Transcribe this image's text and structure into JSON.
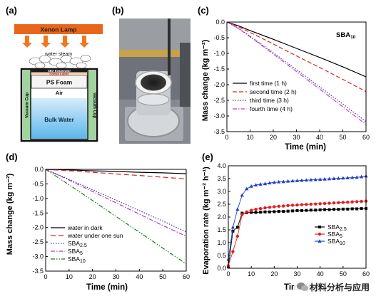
{
  "colors": {
    "lamp": "#e8661c",
    "arrow": "#f07820",
    "water_top": "#d6ecfa",
    "water_bottom": "#5cb6ea",
    "cup_wall": "#111111",
    "green_band": "#9fd49c",
    "foam": "#f4f4f4",
    "photo_bg": "#6f7278"
  },
  "diagram": {
    "label": "(a)",
    "lamp": "Xenon Lamp",
    "steam": "water steam",
    "evaporator": "SBA Evaporator",
    "fabric": "Cotton Fabric",
    "foam": "PS Foam",
    "air": "Air",
    "water": "Bulk Water",
    "cup_left": "Vacuum Cup",
    "cup_right": "Vacuum Cup"
  },
  "photo": {
    "label": "(b)"
  },
  "watermark": {
    "text": "材料分析与应用",
    "icon": "wechat-icon"
  },
  "chart_data": [
    {
      "id": "c",
      "label": "(c)",
      "type": "line",
      "annotation": "SBA10",
      "xlabel": "Time (min)",
      "ylabel": "Mass change (kg m⁻²)",
      "xlim": [
        0,
        60
      ],
      "ylim": [
        -3.5,
        0
      ],
      "xticks": [
        0,
        10,
        20,
        30,
        40,
        50,
        60
      ],
      "yticks": [
        0.0,
        -0.5,
        -1.0,
        -1.5,
        -2.0,
        -2.5,
        -3.0,
        -3.5
      ],
      "legend_position": "bottom-left",
      "series": [
        {
          "name": "first time (1 h)",
          "color": "#000000",
          "dash": "",
          "x": [
            0,
            5,
            10,
            20,
            30,
            40,
            50,
            60
          ],
          "y": [
            0,
            -0.12,
            -0.27,
            -0.55,
            -0.84,
            -1.13,
            -1.43,
            -1.75
          ]
        },
        {
          "name": "second time (2 h)",
          "color": "#d62222",
          "dash": "6,3",
          "x": [
            0,
            5,
            10,
            20,
            30,
            40,
            50,
            60
          ],
          "y": [
            0,
            -0.15,
            -0.33,
            -0.7,
            -1.08,
            -1.45,
            -1.83,
            -2.22
          ]
        },
        {
          "name": "third time (3 h)",
          "color": "#3b3ba8",
          "dash": "1.5,2",
          "x": [
            0,
            5,
            10,
            20,
            30,
            40,
            50,
            60
          ],
          "y": [
            0,
            -0.2,
            -0.45,
            -0.98,
            -1.52,
            -2.07,
            -2.62,
            -3.18
          ]
        },
        {
          "name": "fourth time (4 h)",
          "color": "#c045c0",
          "dash": "6,2,1.5,2",
          "x": [
            0,
            5,
            10,
            20,
            30,
            40,
            50,
            60
          ],
          "y": [
            0,
            -0.21,
            -0.47,
            -1.02,
            -1.58,
            -2.14,
            -2.71,
            -3.27
          ]
        }
      ]
    },
    {
      "id": "d",
      "label": "(d)",
      "type": "line",
      "xlabel": "Time (min)",
      "ylabel": "Mass change (kg m⁻²)",
      "xlim": [
        0,
        60
      ],
      "ylim": [
        -3.5,
        0
      ],
      "xticks": [
        0,
        10,
        20,
        30,
        40,
        50,
        60
      ],
      "yticks": [
        0.0,
        -0.5,
        -1.0,
        -1.5,
        -2.0,
        -2.5,
        -3.0,
        -3.5
      ],
      "legend_position": "bottom-left",
      "series": [
        {
          "name": "water in dark",
          "color": "#000000",
          "dash": "",
          "x": [
            0,
            10,
            20,
            30,
            40,
            50,
            60
          ],
          "y": [
            0,
            -0.02,
            -0.05,
            -0.07,
            -0.1,
            -0.12,
            -0.15
          ]
        },
        {
          "name": "water under one sun",
          "color": "#d62222",
          "dash": "7,4",
          "x": [
            0,
            10,
            20,
            30,
            40,
            50,
            60
          ],
          "y": [
            0,
            -0.05,
            -0.1,
            -0.16,
            -0.21,
            -0.27,
            -0.33
          ]
        },
        {
          "name": "SBA2.5",
          "color": "#3b3ba8",
          "dash": "1.5,2",
          "x": [
            0,
            10,
            20,
            30,
            40,
            50,
            60
          ],
          "y": [
            0,
            -0.34,
            -0.7,
            -1.06,
            -1.42,
            -1.78,
            -2.15
          ]
        },
        {
          "name": "SBA5",
          "color": "#b03fb0",
          "dash": "6,2,1.5,2",
          "x": [
            0,
            10,
            20,
            30,
            40,
            50,
            60
          ],
          "y": [
            0,
            -0.37,
            -0.76,
            -1.15,
            -1.54,
            -1.93,
            -2.3
          ]
        },
        {
          "name": "SBA10",
          "color": "#1f7a1f",
          "dash": "6,2,1.5,2,1.5,2",
          "x": [
            0,
            10,
            20,
            30,
            40,
            50,
            60
          ],
          "y": [
            0,
            -0.53,
            -1.07,
            -1.62,
            -2.16,
            -2.71,
            -3.25
          ]
        }
      ]
    },
    {
      "id": "e",
      "label": "(e)",
      "type": "line",
      "xlabel": "Time (min)",
      "ylabel": "Evaporation rate (kg m⁻² h⁻¹)",
      "xlim": [
        0,
        60
      ],
      "ylim": [
        0,
        4.0
      ],
      "xticks": [
        0,
        10,
        20,
        30,
        40,
        50,
        60
      ],
      "yticks": [
        0.0,
        0.5,
        1.0,
        1.5,
        2.0,
        2.5,
        3.0,
        3.5,
        4.0
      ],
      "legend_position": "center-right",
      "series": [
        {
          "name": "SBA2.5",
          "color": "#000000",
          "marker": "square",
          "x": [
            0,
            2,
            4,
            6,
            8,
            10,
            12,
            14,
            16,
            18,
            20,
            22,
            24,
            26,
            28,
            30,
            32,
            34,
            36,
            38,
            40,
            42,
            44,
            46,
            48,
            50,
            52,
            54,
            56,
            58,
            60
          ],
          "y": [
            0.05,
            1.45,
            1.6,
            2.15,
            2.17,
            2.18,
            2.18,
            2.19,
            2.2,
            2.2,
            2.21,
            2.22,
            2.22,
            2.23,
            2.24,
            2.25,
            2.25,
            2.26,
            2.27,
            2.27,
            2.28,
            2.29,
            2.29,
            2.3,
            2.3,
            2.31,
            2.31,
            2.32,
            2.32,
            2.33,
            2.33
          ]
        },
        {
          "name": "SBA5",
          "color": "#e02020",
          "marker": "circle",
          "x": [
            0,
            2,
            4,
            6,
            8,
            10,
            12,
            14,
            16,
            18,
            20,
            22,
            24,
            26,
            28,
            30,
            32,
            34,
            36,
            38,
            40,
            42,
            44,
            46,
            48,
            50,
            52,
            54,
            56,
            58,
            60
          ],
          "y": [
            0.1,
            0.65,
            1.25,
            2.1,
            2.2,
            2.26,
            2.3,
            2.33,
            2.36,
            2.38,
            2.4,
            2.42,
            2.43,
            2.45,
            2.46,
            2.47,
            2.48,
            2.49,
            2.5,
            2.51,
            2.52,
            2.53,
            2.54,
            2.55,
            2.56,
            2.57,
            2.58,
            2.59,
            2.6,
            2.61,
            2.62
          ]
        },
        {
          "name": "SBA10",
          "color": "#2040c0",
          "marker": "triangle",
          "x": [
            0,
            2,
            4,
            6,
            8,
            10,
            12,
            14,
            16,
            18,
            20,
            22,
            24,
            26,
            28,
            30,
            32,
            34,
            36,
            38,
            40,
            42,
            44,
            46,
            48,
            50,
            52,
            54,
            56,
            58,
            60
          ],
          "y": [
            0.35,
            1.6,
            2.3,
            2.85,
            3.1,
            3.2,
            3.25,
            3.28,
            3.3,
            3.33,
            3.35,
            3.37,
            3.38,
            3.4,
            3.41,
            3.42,
            3.43,
            3.44,
            3.45,
            3.46,
            3.47,
            3.48,
            3.49,
            3.5,
            3.51,
            3.52,
            3.53,
            3.54,
            3.55,
            3.57,
            3.6
          ]
        }
      ]
    }
  ]
}
